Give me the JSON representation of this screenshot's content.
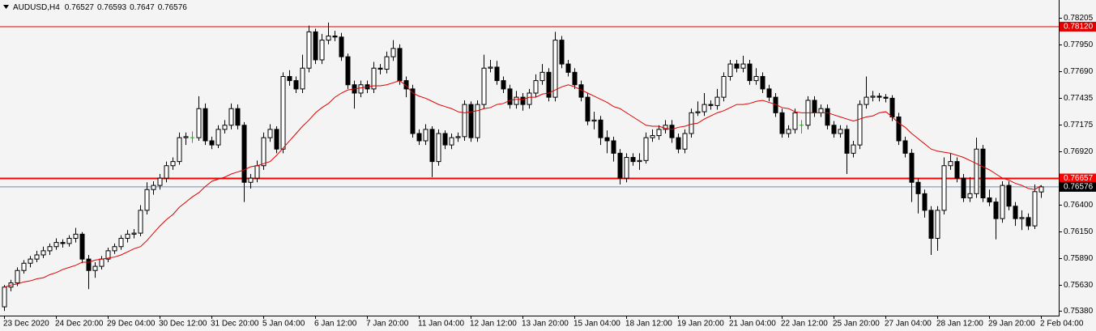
{
  "chart_data": {
    "type": "candlestick",
    "title": "AUDUSD,H4",
    "categories": [
      "23 Dec 2020",
      null,
      null,
      null,
      null,
      null,
      null,
      null,
      "24 Dec 20:00",
      null,
      null,
      null,
      null,
      null,
      null,
      null,
      "29 Dec 04:00",
      null,
      null,
      null,
      null,
      null,
      null,
      null,
      "30 Dec 12:00",
      null,
      null,
      null,
      null,
      null,
      null,
      null,
      "31 Dec 20:00",
      null,
      null,
      null,
      null,
      null,
      null,
      null,
      "5 Jan 04:00",
      null,
      null,
      null,
      null,
      null,
      null,
      null,
      "6 Jan 12:00",
      null,
      null,
      null,
      null,
      null,
      null,
      null,
      "7 Jan 20:00",
      null,
      null,
      null,
      null,
      null,
      null,
      null,
      "11 Jan 04:00",
      null,
      null,
      null,
      null,
      null,
      null,
      null,
      "12 Jan 12:00",
      null,
      null,
      null,
      null,
      null,
      null,
      null,
      "13 Jan 20:00",
      null,
      null,
      null,
      null,
      null,
      null,
      null,
      "15 Jan 04:00",
      null,
      null,
      null,
      null,
      null,
      null,
      null,
      "18 Jan 12:00",
      null,
      null,
      null,
      null,
      null,
      null,
      null,
      "19 Jan 20:00",
      null,
      null,
      null,
      null,
      null,
      null,
      null,
      "21 Jan 04:00",
      null,
      null,
      null,
      null,
      null,
      null,
      null,
      "22 Jan 12:00",
      null,
      null,
      null,
      null,
      null,
      null,
      null,
      "25 Jan 20:00",
      null,
      null,
      null,
      null,
      null,
      null,
      null,
      "27 Jan 04:00",
      null,
      null,
      null,
      null,
      null,
      null,
      null,
      "28 Jan 12:00",
      null,
      null,
      null,
      null,
      null,
      null,
      null,
      "29 Jan 20:00",
      null,
      null,
      null,
      null,
      null,
      null,
      null,
      "2 Feb 04:00"
    ],
    "ohlc": [
      [
        0.7542,
        0.7563,
        0.7538,
        0.7561
      ],
      [
        0.7561,
        0.7568,
        0.7557,
        0.7565
      ],
      [
        0.7565,
        0.758,
        0.7562,
        0.7577
      ],
      [
        0.7577,
        0.7587,
        0.7574,
        0.7584
      ],
      [
        0.7584,
        0.7591,
        0.758,
        0.7588
      ],
      [
        0.7588,
        0.7596,
        0.7585,
        0.7592
      ],
      [
        0.7592,
        0.76,
        0.7589,
        0.7596
      ],
      [
        0.7596,
        0.7603,
        0.7592,
        0.76
      ],
      [
        0.76,
        0.7608,
        0.7597,
        0.7604
      ],
      [
        0.7604,
        0.7607,
        0.7599,
        0.7603
      ],
      [
        0.7603,
        0.7611,
        0.76,
        0.7608
      ],
      [
        0.7608,
        0.7618,
        0.7604,
        0.7612
      ],
      [
        0.7612,
        0.7614,
        0.7584,
        0.7588
      ],
      [
        0.7588,
        0.7592,
        0.7559,
        0.7577
      ],
      [
        0.7577,
        0.7585,
        0.757,
        0.7581
      ],
      [
        0.7581,
        0.7591,
        0.7578,
        0.7588
      ],
      [
        0.7588,
        0.7599,
        0.7585,
        0.7596
      ],
      [
        0.7596,
        0.7603,
        0.7593,
        0.76
      ],
      [
        0.76,
        0.7611,
        0.7597,
        0.7608
      ],
      [
        0.7608,
        0.7616,
        0.7604,
        0.7612
      ],
      [
        0.7612,
        0.7617,
        0.7608,
        0.7613
      ],
      [
        0.7613,
        0.764,
        0.761,
        0.7635
      ],
      [
        0.7635,
        0.7662,
        0.7631,
        0.7655
      ],
      [
        0.7655,
        0.7663,
        0.765,
        0.7659
      ],
      [
        0.7659,
        0.767,
        0.7655,
        0.7666
      ],
      [
        0.7666,
        0.7682,
        0.7662,
        0.7678
      ],
      [
        0.7678,
        0.7686,
        0.7674,
        0.7682
      ],
      [
        0.7682,
        0.771,
        0.7679,
        0.7705
      ],
      [
        0.7705,
        0.771,
        0.7698,
        0.7706
      ],
      [
        0.7705,
        0.7711,
        0.77,
        0.7705
      ],
      [
        0.7705,
        0.7745,
        0.7702,
        0.7733
      ],
      [
        0.7733,
        0.7738,
        0.7698,
        0.7702
      ],
      [
        0.7702,
        0.7706,
        0.7694,
        0.7698
      ],
      [
        0.7698,
        0.7717,
        0.7695,
        0.7713
      ],
      [
        0.7713,
        0.7722,
        0.7709,
        0.7717
      ],
      [
        0.7717,
        0.7738,
        0.7713,
        0.7733
      ],
      [
        0.7733,
        0.7737,
        0.7713,
        0.7717
      ],
      [
        0.7717,
        0.772,
        0.7643,
        0.7662
      ],
      [
        0.7662,
        0.767,
        0.7656,
        0.7666
      ],
      [
        0.7666,
        0.7683,
        0.7662,
        0.7678
      ],
      [
        0.7678,
        0.771,
        0.7674,
        0.7705
      ],
      [
        0.7705,
        0.7718,
        0.7701,
        0.7713
      ],
      [
        0.7713,
        0.7716,
        0.769,
        0.7694
      ],
      [
        0.7694,
        0.7768,
        0.769,
        0.7764
      ],
      [
        0.7764,
        0.777,
        0.7755,
        0.776
      ],
      [
        0.776,
        0.7764,
        0.7748,
        0.7752
      ],
      [
        0.7752,
        0.7785,
        0.7748,
        0.7772
      ],
      [
        0.7772,
        0.7813,
        0.7768,
        0.7807
      ],
      [
        0.7807,
        0.781,
        0.7776,
        0.778
      ],
      [
        0.778,
        0.7805,
        0.7776,
        0.7799
      ],
      [
        0.7799,
        0.7816,
        0.7795,
        0.7803
      ],
      [
        0.7803,
        0.7808,
        0.7798,
        0.7802
      ],
      [
        0.7802,
        0.7806,
        0.7779,
        0.7783
      ],
      [
        0.7783,
        0.7786,
        0.7752,
        0.7756
      ],
      [
        0.7756,
        0.776,
        0.7733,
        0.7748
      ],
      [
        0.7748,
        0.776,
        0.7744,
        0.7756
      ],
      [
        0.7756,
        0.776,
        0.7748,
        0.7752
      ],
      [
        0.7752,
        0.7778,
        0.7748,
        0.7772
      ],
      [
        0.7772,
        0.7776,
        0.7766,
        0.7771
      ],
      [
        0.7771,
        0.7788,
        0.7767,
        0.7783
      ],
      [
        0.7783,
        0.7799,
        0.7779,
        0.7791
      ],
      [
        0.7791,
        0.7795,
        0.7756,
        0.776
      ],
      [
        0.776,
        0.7764,
        0.7744,
        0.7752
      ],
      [
        0.7752,
        0.7756,
        0.7705,
        0.7709
      ],
      [
        0.7709,
        0.7713,
        0.7698,
        0.7702
      ],
      [
        0.7702,
        0.7718,
        0.7698,
        0.7713
      ],
      [
        0.7713,
        0.7716,
        0.7667,
        0.7682
      ],
      [
        0.7682,
        0.7713,
        0.7678,
        0.7709
      ],
      [
        0.7709,
        0.7712,
        0.7694,
        0.7698
      ],
      [
        0.7698,
        0.7709,
        0.7694,
        0.7705
      ],
      [
        0.7705,
        0.771,
        0.7701,
        0.7706
      ],
      [
        0.7706,
        0.7741,
        0.7702,
        0.7737
      ],
      [
        0.7737,
        0.774,
        0.7701,
        0.7705
      ],
      [
        0.7705,
        0.7741,
        0.7701,
        0.7737
      ],
      [
        0.7737,
        0.7785,
        0.7733,
        0.7772
      ],
      [
        0.7772,
        0.778,
        0.7768,
        0.7773
      ],
      [
        0.7773,
        0.7779,
        0.7756,
        0.776
      ],
      [
        0.776,
        0.7764,
        0.7748,
        0.7752
      ],
      [
        0.7752,
        0.7756,
        0.7733,
        0.7737
      ],
      [
        0.7737,
        0.775,
        0.7733,
        0.7744
      ],
      [
        0.7744,
        0.7748,
        0.7731,
        0.7737
      ],
      [
        0.7737,
        0.7752,
        0.7733,
        0.7748
      ],
      [
        0.7748,
        0.7766,
        0.7744,
        0.776
      ],
      [
        0.776,
        0.7776,
        0.7756,
        0.7768
      ],
      [
        0.7768,
        0.7772,
        0.774,
        0.7744
      ],
      [
        0.7744,
        0.7807,
        0.774,
        0.7799
      ],
      [
        0.7799,
        0.7803,
        0.7772,
        0.7776
      ],
      [
        0.7776,
        0.778,
        0.7764,
        0.7768
      ],
      [
        0.7768,
        0.7772,
        0.7752,
        0.7756
      ],
      [
        0.7756,
        0.776,
        0.774,
        0.7744
      ],
      [
        0.7744,
        0.7748,
        0.7717,
        0.7721
      ],
      [
        0.7721,
        0.773,
        0.7713,
        0.7722
      ],
      [
        0.7722,
        0.7726,
        0.7698,
        0.7705
      ],
      [
        0.7705,
        0.7712,
        0.769,
        0.7702
      ],
      [
        0.7702,
        0.7706,
        0.7682,
        0.769
      ],
      [
        0.769,
        0.7694,
        0.766,
        0.7666
      ],
      [
        0.7666,
        0.769,
        0.7662,
        0.7686
      ],
      [
        0.7686,
        0.769,
        0.7678,
        0.7682
      ],
      [
        0.7682,
        0.769,
        0.7674,
        0.7683
      ],
      [
        0.7683,
        0.771,
        0.768,
        0.7705
      ],
      [
        0.7705,
        0.7713,
        0.7701,
        0.7707
      ],
      [
        0.7707,
        0.7717,
        0.7703,
        0.7713
      ],
      [
        0.7713,
        0.7722,
        0.7709,
        0.7717
      ],
      [
        0.7717,
        0.7722,
        0.77,
        0.7705
      ],
      [
        0.7705,
        0.7709,
        0.769,
        0.7694
      ],
      [
        0.7694,
        0.7713,
        0.769,
        0.7709
      ],
      [
        0.7709,
        0.7733,
        0.7705,
        0.7729
      ],
      [
        0.7729,
        0.774,
        0.7726,
        0.773
      ],
      [
        0.773,
        0.7748,
        0.7726,
        0.7737
      ],
      [
        0.7737,
        0.7741,
        0.7732,
        0.7736
      ],
      [
        0.7736,
        0.7752,
        0.7732,
        0.7744
      ],
      [
        0.7744,
        0.7768,
        0.774,
        0.7764
      ],
      [
        0.7764,
        0.778,
        0.776,
        0.7776
      ],
      [
        0.7776,
        0.778,
        0.7768,
        0.7772
      ],
      [
        0.7772,
        0.7784,
        0.7768,
        0.7776
      ],
      [
        0.7776,
        0.778,
        0.7756,
        0.776
      ],
      [
        0.776,
        0.7772,
        0.7756,
        0.7764
      ],
      [
        0.7764,
        0.7768,
        0.7748,
        0.7752
      ],
      [
        0.7752,
        0.7756,
        0.774,
        0.7744
      ],
      [
        0.7744,
        0.7748,
        0.7725,
        0.7729
      ],
      [
        0.7729,
        0.7733,
        0.7705,
        0.7709
      ],
      [
        0.7709,
        0.7717,
        0.7705,
        0.7713
      ],
      [
        0.7713,
        0.7733,
        0.7709,
        0.7729
      ],
      [
        0.7717,
        0.7722,
        0.7709,
        0.7717
      ],
      [
        0.7717,
        0.7745,
        0.7713,
        0.7741
      ],
      [
        0.7741,
        0.7745,
        0.7725,
        0.7729
      ],
      [
        0.7729,
        0.7737,
        0.7725,
        0.7733
      ],
      [
        0.7733,
        0.7737,
        0.7713,
        0.7717
      ],
      [
        0.7717,
        0.7721,
        0.7705,
        0.7709
      ],
      [
        0.7709,
        0.7717,
        0.7705,
        0.7713
      ],
      [
        0.7713,
        0.7717,
        0.767,
        0.769
      ],
      [
        0.769,
        0.7702,
        0.7686,
        0.7698
      ],
      [
        0.7698,
        0.7741,
        0.7694,
        0.7737
      ],
      [
        0.7737,
        0.7764,
        0.7733,
        0.7744
      ],
      [
        0.7744,
        0.775,
        0.774,
        0.7745
      ],
      [
        0.7745,
        0.7748,
        0.774,
        0.7744
      ],
      [
        0.7744,
        0.7747,
        0.7739,
        0.7743
      ],
      [
        0.7743,
        0.7746,
        0.7721,
        0.7725
      ],
      [
        0.7725,
        0.7729,
        0.7698,
        0.7702
      ],
      [
        0.7702,
        0.7706,
        0.7686,
        0.769
      ],
      [
        0.769,
        0.7694,
        0.7643,
        0.7662
      ],
      [
        0.7662,
        0.7666,
        0.7632,
        0.7651
      ],
      [
        0.7651,
        0.7655,
        0.7628,
        0.7635
      ],
      [
        0.7635,
        0.7639,
        0.7592,
        0.7608
      ],
      [
        0.7608,
        0.7639,
        0.7596,
        0.7635
      ],
      [
        0.7635,
        0.7686,
        0.7631,
        0.7678
      ],
      [
        0.7678,
        0.769,
        0.7674,
        0.7682
      ],
      [
        0.7682,
        0.7686,
        0.7662,
        0.7666
      ],
      [
        0.7666,
        0.767,
        0.7643,
        0.7647
      ],
      [
        0.7647,
        0.7667,
        0.7643,
        0.7651
      ],
      [
        0.7651,
        0.7705,
        0.7647,
        0.7694
      ],
      [
        0.7694,
        0.7698,
        0.7643,
        0.7647
      ],
      [
        0.7647,
        0.7655,
        0.7639,
        0.7643
      ],
      [
        0.7643,
        0.7647,
        0.7607,
        0.7627
      ],
      [
        0.7627,
        0.7663,
        0.7623,
        0.7659
      ],
      [
        0.7659,
        0.7663,
        0.7635,
        0.7639
      ],
      [
        0.7639,
        0.7643,
        0.762,
        0.7627
      ],
      [
        0.7627,
        0.7635,
        0.7616,
        0.7628
      ],
      [
        0.7628,
        0.7632,
        0.7616,
        0.762
      ],
      [
        0.762,
        0.766,
        0.7617,
        0.7653
      ],
      [
        0.76527,
        0.76593,
        0.7647,
        0.76576
      ]
    ],
    "colors": {
      "up": "#ffffff",
      "down": "#000000",
      "doji": "#00c000",
      "wick": "#000000"
    },
    "ma": {
      "color": "#e00000",
      "values": [
        0.7561,
        0.7563,
        0.7564,
        0.7566,
        0.7567,
        0.7569,
        0.757,
        0.7573,
        0.7575,
        0.7578,
        0.758,
        0.7582,
        0.7585,
        0.7585,
        0.7587,
        0.7588,
        0.7589,
        0.759,
        0.7592,
        0.7595,
        0.7598,
        0.76,
        0.7606,
        0.7613,
        0.762,
        0.7626,
        0.7631,
        0.7638,
        0.7643,
        0.7648,
        0.7652,
        0.7658,
        0.7663,
        0.7665,
        0.7667,
        0.767,
        0.7672,
        0.7674,
        0.7677,
        0.7678,
        0.768,
        0.7682,
        0.7688,
        0.7695,
        0.7702,
        0.7709,
        0.7716,
        0.7722,
        0.7729,
        0.7734,
        0.7738,
        0.7744,
        0.7748,
        0.7751,
        0.7752,
        0.7753,
        0.7754,
        0.7755,
        0.7755,
        0.7756,
        0.7758,
        0.776,
        0.7755,
        0.7748,
        0.7745,
        0.7743,
        0.774,
        0.7737,
        0.7735,
        0.7733,
        0.773,
        0.7729,
        0.773,
        0.7731,
        0.7733,
        0.7734,
        0.7737,
        0.7738,
        0.7741,
        0.7742,
        0.7742,
        0.7744,
        0.7744,
        0.7747,
        0.7748,
        0.7751,
        0.7754,
        0.7756,
        0.7754,
        0.7751,
        0.7748,
        0.7745,
        0.7742,
        0.7739,
        0.7735,
        0.7733,
        0.7729,
        0.7725,
        0.7721,
        0.7717,
        0.7716,
        0.7716,
        0.7714,
        0.7713,
        0.7715,
        0.7716,
        0.7718,
        0.7719,
        0.7723,
        0.7726,
        0.7729,
        0.7731,
        0.7734,
        0.7737,
        0.7737,
        0.7738,
        0.774,
        0.7741,
        0.7739,
        0.7737,
        0.7734,
        0.7733,
        0.773,
        0.7729,
        0.7729,
        0.7729,
        0.7729,
        0.7729,
        0.7727,
        0.7725,
        0.7723,
        0.7721,
        0.7723,
        0.7725,
        0.7726,
        0.7729,
        0.773,
        0.7725,
        0.7719,
        0.7715,
        0.7709,
        0.7704,
        0.7699,
        0.7694,
        0.7692,
        0.7691,
        0.769,
        0.7688,
        0.7686,
        0.7683,
        0.768,
        0.7677,
        0.7674,
        0.767,
        0.7666,
        0.7664,
        0.7661,
        0.7659,
        0.7656,
        0.7655,
        0.7659
      ]
    },
    "levels": [
      {
        "value": 0.7812,
        "label": "0.78120",
        "color": "#e00000",
        "width": 1
      },
      {
        "value": 0.76657,
        "color": "#ff0000",
        "width": 2
      }
    ],
    "last_price_color": "#7a8da0",
    "ylim": [
      0.75335,
      0.78377
    ],
    "yticks": [
      0.78205,
      {
        "value": 0.7795,
        "label": "0.77950"
      },
      {
        "value": 0.7769,
        "label": "0.77690"
      },
      0.77435,
      0.77175,
      {
        "value": 0.7692,
        "label": "0.76920"
      },
      {
        "value": 0.764,
        "label": "0.76400"
      },
      {
        "value": 0.7615,
        "label": "0.76150"
      },
      {
        "value": 0.7589,
        "label": "0.75890"
      },
      {
        "value": 0.7563,
        "label": "0.75630"
      },
      {
        "value": 0.7538,
        "label": "0.75380"
      }
    ],
    "grid": false
  }
}
